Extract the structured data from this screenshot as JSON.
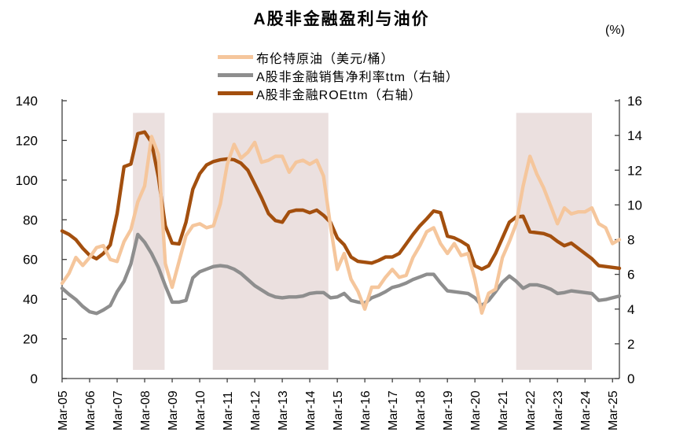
{
  "title": "A股非金融盈利与油价",
  "right_axis_unit": "(%)",
  "legend": [
    {
      "label": "布伦特原油（美元/桶）",
      "color": "#F5C69C"
    },
    {
      "label": "A股非金融销售净利率ttm（右轴）",
      "color": "#8E8E8E"
    },
    {
      "label": "A股非金融ROEttm（右轴）",
      "color": "#A34F0E"
    }
  ],
  "chart_data": {
    "type": "line",
    "x": [
      "Mar-05",
      "Jun-05",
      "Sep-05",
      "Dec-05",
      "Mar-06",
      "Jun-06",
      "Sep-06",
      "Dec-06",
      "Mar-07",
      "Jun-07",
      "Sep-07",
      "Dec-07",
      "Mar-08",
      "Jun-08",
      "Sep-08",
      "Dec-08",
      "Mar-09",
      "Jun-09",
      "Sep-09",
      "Dec-09",
      "Mar-10",
      "Jun-10",
      "Sep-10",
      "Dec-10",
      "Mar-11",
      "Jun-11",
      "Sep-11",
      "Dec-11",
      "Mar-12",
      "Jun-12",
      "Sep-12",
      "Dec-12",
      "Mar-13",
      "Jun-13",
      "Sep-13",
      "Dec-13",
      "Mar-14",
      "Jun-14",
      "Sep-14",
      "Dec-14",
      "Mar-15",
      "Jun-15",
      "Sep-15",
      "Dec-15",
      "Mar-16",
      "Jun-16",
      "Sep-16",
      "Dec-16",
      "Mar-17",
      "Jun-17",
      "Sep-17",
      "Dec-17",
      "Mar-18",
      "Jun-18",
      "Sep-18",
      "Dec-18",
      "Mar-19",
      "Jun-19",
      "Sep-19",
      "Dec-19",
      "Mar-20",
      "Jun-20",
      "Sep-20",
      "Dec-20",
      "Mar-21",
      "Jun-21",
      "Sep-21",
      "Dec-21",
      "Mar-22",
      "Jun-22",
      "Sep-22",
      "Dec-22",
      "Mar-23",
      "Jun-23",
      "Sep-23",
      "Dec-23",
      "Mar-24",
      "Jun-24",
      "Sep-24",
      "Dec-24",
      "Mar-25",
      "Jun-25"
    ],
    "x_tick_every": 4,
    "left_axis": {
      "min": 0,
      "max": 140,
      "ticks": [
        0,
        20,
        40,
        60,
        80,
        100,
        120,
        140
      ]
    },
    "right_axis": {
      "min": 0,
      "max": 16,
      "ticks": [
        0,
        2,
        4,
        6,
        8,
        10,
        12,
        14,
        16
      ],
      "unit": "(%)"
    },
    "series": [
      {
        "name": "布伦特原油（美元/桶）",
        "axis": "left",
        "color": "#F5C69C",
        "values": [
          48,
          53,
          61,
          57,
          61,
          66,
          67,
          60,
          59,
          69,
          75,
          89,
          97,
          122,
          113,
          58,
          46,
          59,
          72,
          77,
          78,
          76,
          77,
          88,
          108,
          118,
          111,
          114,
          119,
          109,
          110,
          112,
          112,
          104,
          109,
          110,
          108,
          110,
          102,
          77,
          55,
          63,
          50,
          44,
          35,
          46,
          46,
          51,
          55,
          51,
          52,
          61,
          67,
          74,
          76,
          68,
          63,
          68,
          62,
          63,
          50,
          33,
          43,
          45,
          61,
          69,
          78,
          97,
          112,
          103,
          96,
          87,
          78,
          86,
          83,
          84,
          84,
          86,
          78,
          76,
          68,
          70
        ]
      },
      {
        "name": "A股非金融销售净利率ttm（右轴）",
        "axis": "right",
        "color": "#8E8E8E",
        "values": [
          5.2,
          4.85,
          4.55,
          4.15,
          3.85,
          3.75,
          3.95,
          4.2,
          5.0,
          5.6,
          6.6,
          8.3,
          7.85,
          7.2,
          6.4,
          5.35,
          4.4,
          4.4,
          4.5,
          5.8,
          6.15,
          6.3,
          6.45,
          6.5,
          6.45,
          6.3,
          6.05,
          5.7,
          5.35,
          5.1,
          4.85,
          4.7,
          4.65,
          4.7,
          4.7,
          4.75,
          4.9,
          4.95,
          4.95,
          4.65,
          4.7,
          4.9,
          4.5,
          4.4,
          4.35,
          4.65,
          4.8,
          5.0,
          5.25,
          5.35,
          5.5,
          5.7,
          5.85,
          6.0,
          6.0,
          5.5,
          5.05,
          5.0,
          4.95,
          4.9,
          4.65,
          4.2,
          4.5,
          5.0,
          5.55,
          5.9,
          5.6,
          5.2,
          5.4,
          5.4,
          5.3,
          5.15,
          4.9,
          4.95,
          5.05,
          5.0,
          4.95,
          4.9,
          4.5,
          4.55,
          4.65,
          4.75
        ]
      },
      {
        "name": "A股非金融ROEttm（右轴）",
        "axis": "right",
        "color": "#A34F0E",
        "values": [
          8.5,
          8.3,
          8.0,
          7.5,
          7.1,
          6.9,
          7.2,
          7.7,
          9.5,
          12.2,
          12.35,
          14.1,
          14.2,
          13.6,
          11.6,
          8.8,
          7.8,
          7.75,
          9.0,
          10.9,
          11.8,
          12.3,
          12.5,
          12.6,
          12.65,
          12.6,
          12.4,
          12.0,
          11.2,
          10.4,
          9.5,
          9.1,
          9.0,
          9.6,
          9.7,
          9.7,
          9.55,
          9.7,
          9.4,
          9.0,
          8.1,
          7.7,
          7.0,
          6.75,
          6.7,
          6.65,
          6.8,
          7.0,
          7.0,
          7.2,
          7.75,
          8.3,
          8.8,
          9.2,
          9.65,
          9.55,
          8.2,
          8.1,
          7.9,
          7.65,
          6.5,
          6.3,
          6.5,
          7.2,
          8.1,
          9.0,
          9.3,
          9.35,
          8.45,
          8.4,
          8.35,
          8.2,
          7.9,
          7.65,
          7.8,
          7.5,
          7.2,
          6.9,
          6.5,
          6.45,
          6.4,
          6.35
        ]
      }
    ],
    "shaded_bands": [
      {
        "from_index": 10.3,
        "to_index": 14.9
      },
      {
        "from_index": 21.9,
        "to_index": 38.7
      },
      {
        "from_index": 66.0,
        "to_index": 77.0
      }
    ],
    "band_color": "#EBE0DF",
    "band_top_right_value": 15.3,
    "band_bottom_right_value": 0.5,
    "grid": false,
    "legend_position": "top-center"
  }
}
